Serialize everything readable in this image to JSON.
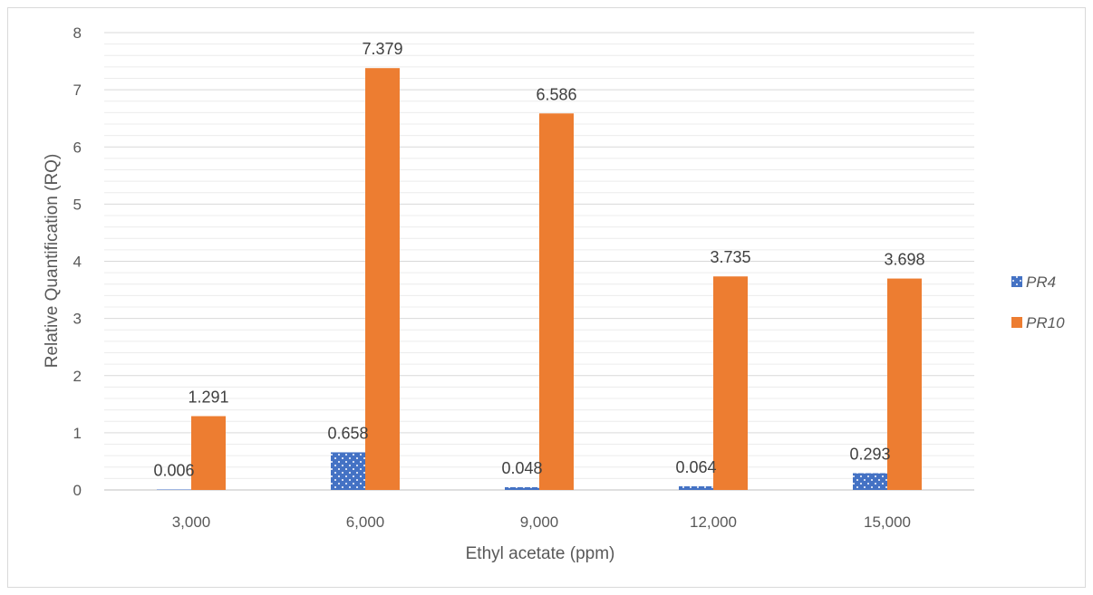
{
  "chart_data": {
    "type": "bar",
    "xlabel": "Ethyl acetate (ppm)",
    "ylabel": "Relative Quantification (RQ)",
    "categories": [
      "3,000",
      "6,000",
      "9,000",
      "12,000",
      "15,000"
    ],
    "ylim": [
      0,
      8
    ],
    "yticks": [
      0,
      1,
      2,
      3,
      4,
      5,
      6,
      7,
      8
    ],
    "grid": true,
    "legend": "right",
    "series": [
      {
        "name": "PR4",
        "values": [
          0.006,
          0.658,
          0.048,
          0.064,
          0.293
        ],
        "labels": [
          "0.006",
          "0.658",
          "0.048",
          "0.064",
          "0.293"
        ],
        "color": "#4472C4",
        "pattern": "dotted"
      },
      {
        "name": "PR10",
        "values": [
          1.291,
          7.379,
          6.586,
          3.735,
          3.698
        ],
        "labels": [
          "1.291",
          "7.379",
          "6.586",
          "3.735",
          "3.698"
        ],
        "color": "#ED7D31",
        "pattern": "solid"
      }
    ]
  }
}
